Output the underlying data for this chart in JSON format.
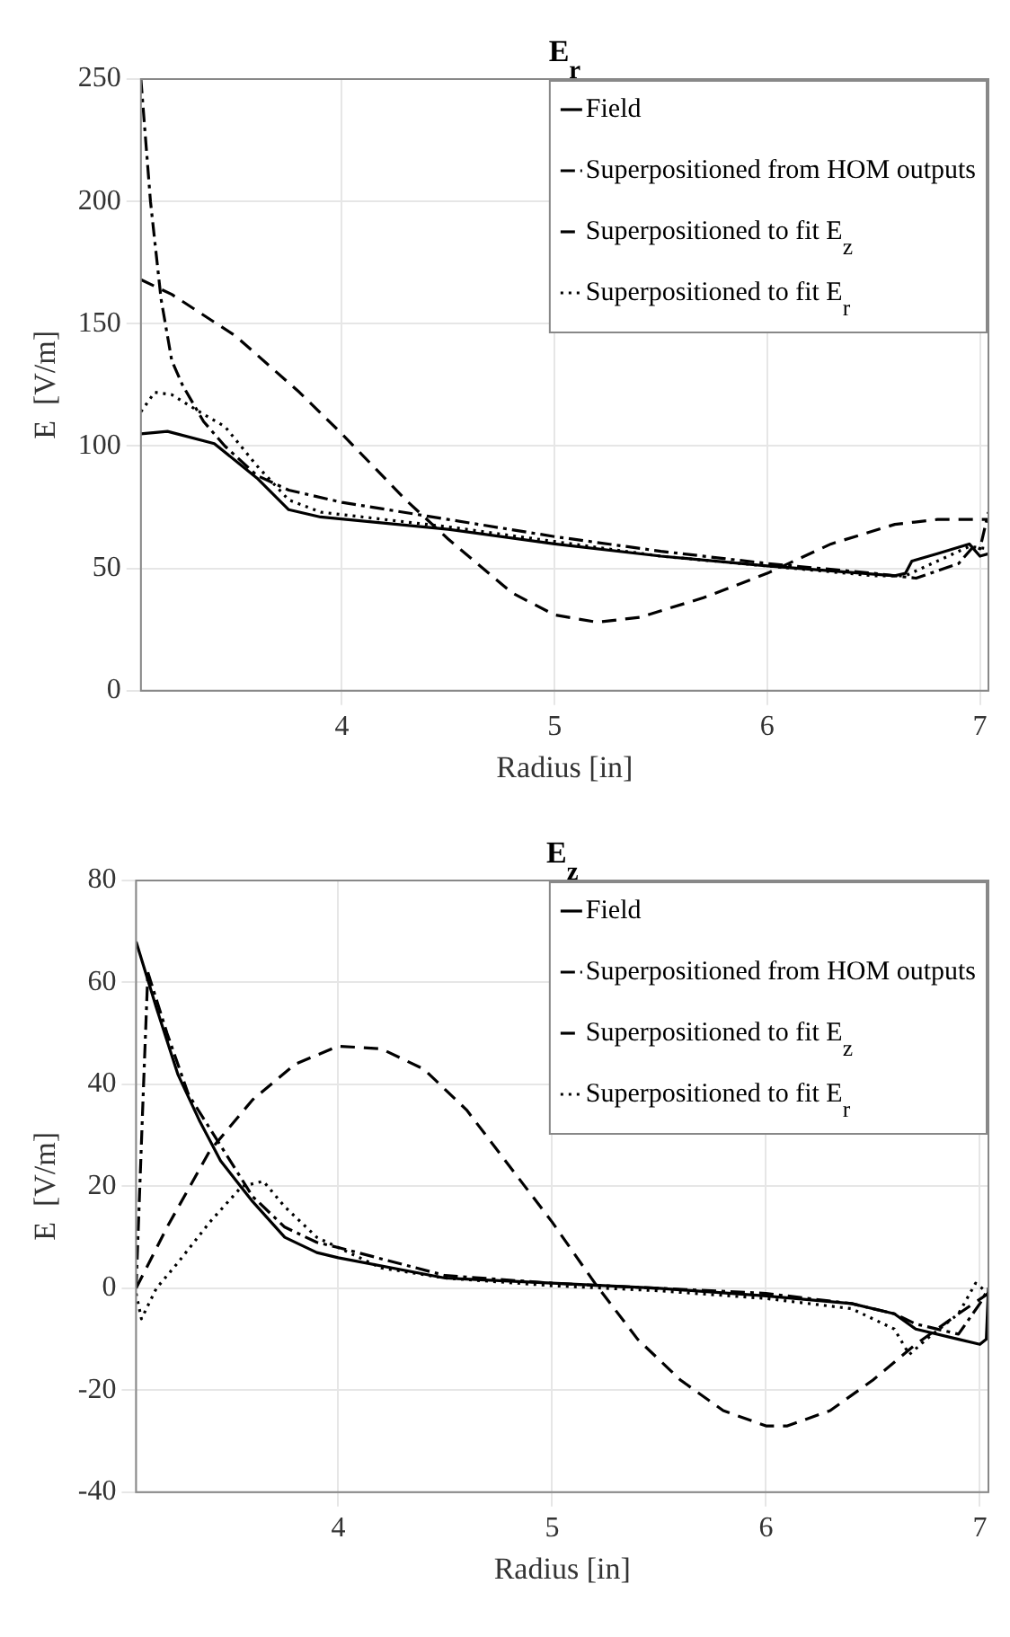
{
  "chart_data": [
    {
      "type": "line",
      "title": "E$_{r}$",
      "xlabel": "Radius [in]",
      "ylabel": "E  [V/m]",
      "xlim": [
        3.055,
        7.04
      ],
      "xticks": [
        4,
        5,
        6,
        7
      ],
      "ylim": [
        0,
        250
      ],
      "yticks": [
        0,
        50,
        100,
        150,
        200,
        250
      ],
      "grid": true,
      "legend": "top right",
      "series": [
        {
          "name": "Field",
          "color": "#000000",
          "line_style": "solid",
          "x": [
            3.055,
            3.18,
            3.4,
            3.6,
            3.75,
            3.9,
            4.5,
            5,
            5.5,
            6,
            6.3,
            6.6,
            6.65,
            6.68,
            6.8,
            6.95,
            7.0,
            7.04
          ],
          "values": [
            105,
            106,
            101,
            87,
            74,
            71,
            66,
            60,
            55,
            51,
            49,
            47,
            48,
            53,
            56,
            60,
            55,
            56
          ]
        },
        {
          "name": "Superpositioned from HOM outputs",
          "color": "#000000",
          "line_style": "dashdot",
          "x": [
            3.055,
            3.1,
            3.15,
            3.2,
            3.25,
            3.35,
            3.45,
            3.6,
            3.75,
            4,
            4.5,
            5,
            5.5,
            6,
            6.5,
            6.7,
            6.9,
            6.97,
            7.0,
            7.04
          ],
          "values": [
            250,
            200,
            160,
            135,
            125,
            110,
            100,
            88,
            82,
            77,
            70,
            63,
            57,
            52,
            48,
            46,
            52,
            59,
            58,
            73
          ]
        },
        {
          "name": "Superpositioned to fit E$_{z}$",
          "color": "#000000",
          "line_style": "dashed",
          "x": [
            3.055,
            3.2,
            3.5,
            3.8,
            4.0,
            4.3,
            4.5,
            4.8,
            5.0,
            5.2,
            5.4,
            5.7,
            6.0,
            6.3,
            6.6,
            6.8,
            7.04
          ],
          "values": [
            168,
            162,
            145,
            122,
            105,
            78,
            62,
            40,
            31,
            28,
            30,
            38,
            48,
            60,
            68,
            70,
            70
          ]
        },
        {
          "name": "Superpositioned to fit E$_{r}$",
          "color": "#000000",
          "line_style": "dotted",
          "x": [
            3.055,
            3.12,
            3.2,
            3.35,
            3.45,
            3.6,
            3.75,
            3.9,
            4.5,
            5,
            5.5,
            6,
            6.5,
            6.65,
            6.8,
            6.95,
            7.04
          ],
          "values": [
            114,
            122,
            121,
            113,
            108,
            92,
            78,
            73,
            67,
            61,
            55,
            51,
            47,
            47,
            53,
            59,
            58
          ]
        }
      ]
    },
    {
      "type": "line",
      "title": "E$_{z}$",
      "xlabel": "Radius [in]",
      "ylabel": "E  [V/m]",
      "xlim": [
        3.055,
        7.04
      ],
      "xticks": [
        4,
        5,
        6,
        7
      ],
      "ylim": [
        -40,
        80
      ],
      "yticks": [
        -40,
        -20,
        0,
        20,
        40,
        60,
        80
      ],
      "grid": true,
      "legend": "top right",
      "series": [
        {
          "name": "Field",
          "color": "#000000",
          "line_style": "solid",
          "x": [
            3.055,
            3.15,
            3.25,
            3.35,
            3.45,
            3.6,
            3.75,
            3.9,
            4,
            4.5,
            5,
            5.5,
            6,
            6.4,
            6.6,
            6.7,
            6.9,
            7.0,
            7.03,
            7.04
          ],
          "values": [
            68,
            55,
            42,
            33,
            25,
            17,
            10,
            7,
            6,
            2,
            1,
            0,
            -1.5,
            -3,
            -5,
            -8,
            -10,
            -11,
            -10,
            0
          ]
        },
        {
          "name": "Superpositioned from HOM outputs",
          "color": "#000000",
          "line_style": "dashdot",
          "x": [
            3.055,
            3.09,
            3.11,
            3.2,
            3.3,
            3.45,
            3.6,
            3.75,
            3.9,
            4.0,
            4.5,
            5,
            5.5,
            6,
            6.4,
            6.6,
            6.7,
            6.9,
            7.0,
            7.04
          ],
          "values": [
            0,
            40,
            62,
            50,
            38,
            28,
            18,
            12,
            9,
            8,
            2.5,
            1,
            0,
            -1,
            -3,
            -5,
            -7,
            -9,
            -3,
            0
          ]
        },
        {
          "name": "Superpositioned to fit E$_{z}$",
          "color": "#000000",
          "line_style": "dashed",
          "x": [
            3.055,
            3.2,
            3.4,
            3.6,
            3.8,
            4.0,
            4.2,
            4.4,
            4.6,
            4.8,
            5.0,
            5.2,
            5.4,
            5.6,
            5.8,
            6.0,
            6.1,
            6.3,
            6.5,
            6.7,
            6.9,
            7.04
          ],
          "values": [
            0,
            12,
            27,
            37,
            44,
            47.5,
            47,
            43,
            35,
            24,
            13,
            1,
            -10,
            -18,
            -24,
            -27,
            -27,
            -24,
            -18,
            -11,
            -5,
            -1
          ]
        },
        {
          "name": "Superpositioned to fit E$_{r}$",
          "color": "#000000",
          "line_style": "dotted",
          "x": [
            3.055,
            3.08,
            3.15,
            3.25,
            3.4,
            3.55,
            3.65,
            3.75,
            3.9,
            4.2,
            4.5,
            5,
            5.5,
            6,
            6.4,
            6.6,
            6.67,
            6.75,
            6.9,
            6.98,
            7.04
          ],
          "values": [
            -1,
            -6,
            0,
            5,
            13,
            20,
            21,
            16,
            10,
            4,
            2,
            0.5,
            -0.5,
            -2,
            -4,
            -8,
            -13,
            -10,
            -5,
            1,
            -1
          ]
        }
      ]
    }
  ]
}
